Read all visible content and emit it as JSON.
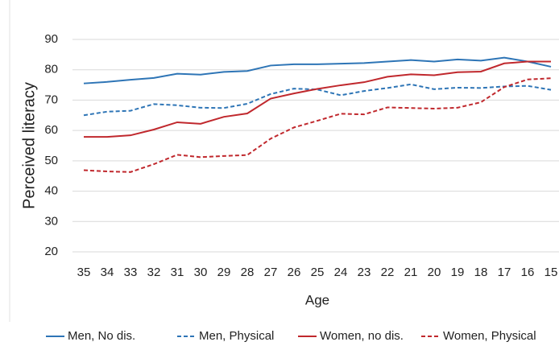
{
  "chart_data": {
    "type": "line",
    "x_label": "Age",
    "y_label": "Perceived literacy",
    "categories": [
      "35",
      "34",
      "33",
      "32",
      "31",
      "30",
      "29",
      "28",
      "27",
      "26",
      "25",
      "24",
      "23",
      "22",
      "21",
      "20",
      "19",
      "18",
      "17",
      "16",
      "15"
    ],
    "series": [
      {
        "name": "Men, No dis.",
        "color": "#2e75b6",
        "style": "solid",
        "values": [
          75.5,
          76,
          76.7,
          77.3,
          78.7,
          78.4,
          79.3,
          79.6,
          81.4,
          81.8,
          81.8,
          82,
          82.2,
          82.7,
          83.2,
          82.7,
          83.4,
          83,
          84,
          82.7,
          81
        ]
      },
      {
        "name": "Men, Physical",
        "color": "#2e75b6",
        "style": "dashed",
        "values": [
          65,
          66.2,
          66.5,
          68.7,
          68.3,
          67.5,
          67.4,
          68.8,
          72,
          73.8,
          73.5,
          71.6,
          73,
          74,
          75.2,
          73.6,
          74.1,
          74,
          74.5,
          74.7,
          73.4
        ]
      },
      {
        "name": "Women, no dis.",
        "color": "#c0282d",
        "style": "solid",
        "values": [
          57.9,
          57.9,
          58.4,
          60.3,
          62.7,
          62.2,
          64.5,
          65.6,
          70.5,
          72.2,
          73.7,
          74.9,
          75.9,
          77.7,
          78.5,
          78.2,
          79.2,
          79.4,
          82.1,
          82.7,
          82.7
        ]
      },
      {
        "name": "Women, Physical",
        "color": "#c0282d",
        "style": "dashed",
        "values": [
          46.9,
          46.5,
          46.3,
          48.9,
          52,
          51.2,
          51.6,
          51.9,
          57.3,
          61,
          63.2,
          65.5,
          65.3,
          67.6,
          67.4,
          67.2,
          67.5,
          69.3,
          74.3,
          76.8,
          77.2
        ]
      }
    ],
    "ylim": [
      20,
      90
    ],
    "yticks": [
      20,
      30,
      40,
      50,
      60,
      70,
      80,
      90
    ],
    "grid": true,
    "legend": "bottom"
  }
}
